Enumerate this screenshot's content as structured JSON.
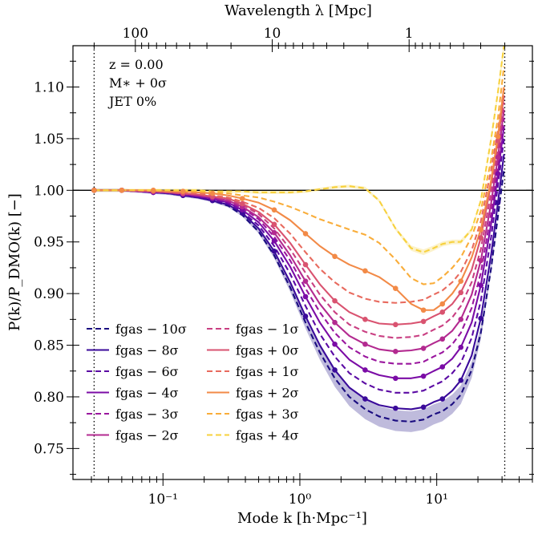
{
  "chart_data": {
    "type": "line",
    "xlabel": "Mode k [h·Mpc⁻¹]",
    "ylabel": "P(k)/P_DMO(k) [−]",
    "top_xlabel": "Wavelength λ [Mpc]",
    "xscale": "log",
    "xlim": [
      0.022,
      50
    ],
    "ylim": [
      0.72,
      1.14
    ],
    "x_ticks": [
      {
        "value": 0.1,
        "label": "10⁻¹"
      },
      {
        "value": 1,
        "label": "10⁰"
      },
      {
        "value": 10,
        "label": "10¹"
      }
    ],
    "y_ticks": [
      {
        "value": 0.75,
        "label": "0.75"
      },
      {
        "value": 0.8,
        "label": "0.80"
      },
      {
        "value": 0.85,
        "label": "0.85"
      },
      {
        "value": 0.9,
        "label": "0.90"
      },
      {
        "value": 0.95,
        "label": "0.95"
      },
      {
        "value": 1.0,
        "label": "1.00"
      },
      {
        "value": 1.05,
        "label": "1.05"
      },
      {
        "value": 1.1,
        "label": "1.10"
      }
    ],
    "top_ticks": [
      {
        "wavelength": 100,
        "label": "100"
      },
      {
        "wavelength": 10,
        "label": "10"
      },
      {
        "wavelength": 1,
        "label": "1"
      }
    ],
    "vlines": [
      0.0314,
      31.4
    ],
    "hline": 1.0,
    "annotations": [
      "z = 0.00",
      "M∗ + 0σ",
      "JET 0%"
    ],
    "legend_position": "lower-left",
    "k_values": [
      0.0314,
      0.04,
      0.05,
      0.065,
      0.085,
      0.11,
      0.14,
      0.18,
      0.23,
      0.3,
      0.38,
      0.5,
      0.65,
      0.85,
      1.1,
      1.4,
      1.8,
      2.3,
      3.0,
      3.8,
      5.0,
      6.5,
      8.0,
      9.5,
      11,
      13,
      15,
      18,
      21,
      25,
      28,
      31
    ],
    "marker_step": 2,
    "series": [
      {
        "name": "fgas − 10σ",
        "label": "fgas − 10σ",
        "color": "#1a0c80",
        "style": "dashed",
        "marker": false,
        "band": true,
        "band_color": "#1a0c80",
        "values": [
          1.0,
          1.0,
          1.0,
          0.999,
          0.998,
          0.997,
          0.995,
          0.993,
          0.99,
          0.985,
          0.976,
          0.96,
          0.937,
          0.906,
          0.872,
          0.843,
          0.818,
          0.8,
          0.788,
          0.781,
          0.777,
          0.776,
          0.778,
          0.783,
          0.786,
          0.793,
          0.802,
          0.826,
          0.862,
          0.925,
          0.975,
          1.02
        ]
      },
      {
        "name": "fgas − 8σ",
        "label": "fgas − 8σ",
        "color": "#3a0a9a",
        "style": "solid",
        "marker": true,
        "band": false,
        "values": [
          1.0,
          1.0,
          1.0,
          0.999,
          0.998,
          0.997,
          0.995,
          0.993,
          0.99,
          0.986,
          0.978,
          0.963,
          0.941,
          0.911,
          0.878,
          0.85,
          0.826,
          0.809,
          0.798,
          0.792,
          0.789,
          0.788,
          0.79,
          0.795,
          0.798,
          0.806,
          0.816,
          0.84,
          0.876,
          0.938,
          0.988,
          1.035
        ]
      },
      {
        "name": "fgas − 6σ",
        "label": "fgas − 6σ",
        "color": "#5b0aa4",
        "style": "dashed",
        "marker": false,
        "band": false,
        "values": [
          1.0,
          1.0,
          1.0,
          0.999,
          0.998,
          0.997,
          0.996,
          0.994,
          0.991,
          0.987,
          0.979,
          0.966,
          0.946,
          0.919,
          0.888,
          0.861,
          0.839,
          0.823,
          0.813,
          0.807,
          0.804,
          0.804,
          0.806,
          0.811,
          0.815,
          0.823,
          0.833,
          0.857,
          0.893,
          0.955,
          1.005,
          1.05
        ]
      },
      {
        "name": "fgas − 4σ",
        "label": "fgas − 4σ",
        "color": "#7b0ca6",
        "style": "solid",
        "marker": true,
        "band": false,
        "values": [
          1.0,
          1.0,
          1.0,
          0.999,
          0.998,
          0.998,
          0.996,
          0.994,
          0.992,
          0.988,
          0.981,
          0.969,
          0.951,
          0.926,
          0.897,
          0.872,
          0.851,
          0.836,
          0.826,
          0.821,
          0.818,
          0.818,
          0.82,
          0.825,
          0.829,
          0.837,
          0.848,
          0.872,
          0.908,
          0.968,
          1.016,
          1.062
        ]
      },
      {
        "name": "fgas − 3σ",
        "label": "fgas − 3σ",
        "color": "#9a169e",
        "style": "dashed",
        "marker": false,
        "band": false,
        "values": [
          1.0,
          1.0,
          1.0,
          0.999,
          0.999,
          0.998,
          0.996,
          0.995,
          0.993,
          0.989,
          0.983,
          0.972,
          0.955,
          0.932,
          0.905,
          0.882,
          0.862,
          0.848,
          0.839,
          0.834,
          0.832,
          0.832,
          0.834,
          0.839,
          0.843,
          0.851,
          0.862,
          0.886,
          0.92,
          0.978,
          1.024,
          1.07
        ]
      },
      {
        "name": "fgas − 2σ",
        "label": "fgas − 2σ",
        "color": "#b32a90",
        "style": "solid",
        "marker": true,
        "band": false,
        "values": [
          1.0,
          1.0,
          1.0,
          0.999,
          0.999,
          0.998,
          0.997,
          0.995,
          0.993,
          0.99,
          0.984,
          0.974,
          0.959,
          0.937,
          0.912,
          0.89,
          0.872,
          0.859,
          0.851,
          0.846,
          0.844,
          0.845,
          0.847,
          0.852,
          0.856,
          0.864,
          0.875,
          0.899,
          0.932,
          0.988,
          1.032,
          1.078
        ]
      },
      {
        "name": "fgas − 1σ",
        "label": "fgas − 1σ",
        "color": "#c93f82",
        "style": "dashed",
        "marker": false,
        "band": false,
        "values": [
          1.0,
          1.0,
          1.0,
          0.999,
          0.999,
          0.998,
          0.997,
          0.996,
          0.994,
          0.991,
          0.986,
          0.977,
          0.963,
          0.943,
          0.92,
          0.899,
          0.882,
          0.87,
          0.863,
          0.859,
          0.857,
          0.858,
          0.86,
          0.865,
          0.869,
          0.877,
          0.888,
          0.911,
          0.943,
          0.998,
          1.04,
          1.085
        ]
      },
      {
        "name": "fgas + 0σ",
        "label": "fgas + 0σ",
        "color": "#d95370",
        "style": "solid",
        "marker": true,
        "band": false,
        "values": [
          1.0,
          1.0,
          1.0,
          1.0,
          0.999,
          0.998,
          0.997,
          0.996,
          0.994,
          0.992,
          0.987,
          0.979,
          0.967,
          0.949,
          0.928,
          0.909,
          0.893,
          0.882,
          0.875,
          0.871,
          0.87,
          0.871,
          0.873,
          0.878,
          0.882,
          0.89,
          0.901,
          0.923,
          0.954,
          1.007,
          1.048,
          1.092
        ]
      },
      {
        "name": "fgas + 1σ",
        "label": "fgas + 1σ",
        "color": "#e86a5e",
        "style": "dashed",
        "marker": false,
        "band": false,
        "values": [
          1.0,
          1.0,
          1.0,
          1.0,
          0.999,
          0.999,
          0.998,
          0.997,
          0.995,
          0.993,
          0.989,
          0.983,
          0.973,
          0.958,
          0.94,
          0.924,
          0.911,
          0.901,
          0.895,
          0.892,
          0.891,
          0.892,
          0.894,
          0.899,
          0.903,
          0.911,
          0.921,
          0.942,
          0.97,
          1.02,
          1.058,
          1.1
        ]
      },
      {
        "name": "fgas + 2σ",
        "label": "fgas + 2σ",
        "color": "#f28a47",
        "style": "solid",
        "marker": true,
        "band": false,
        "values": [
          1.0,
          1.0,
          1.0,
          1.0,
          1.0,
          0.999,
          0.999,
          0.998,
          0.997,
          0.995,
          0.992,
          0.988,
          0.981,
          0.971,
          0.958,
          0.946,
          0.936,
          0.928,
          0.922,
          0.916,
          0.905,
          0.89,
          0.884,
          0.884,
          0.89,
          0.9,
          0.912,
          0.935,
          0.962,
          1.01,
          1.052,
          1.1
        ]
      },
      {
        "name": "fgas + 3σ",
        "label": "fgas + 3σ",
        "color": "#f9ad3a",
        "style": "dashed",
        "marker": false,
        "band": false,
        "values": [
          1.0,
          1.0,
          1.0,
          1.0,
          1.0,
          1.0,
          0.999,
          0.999,
          0.998,
          0.997,
          0.995,
          0.993,
          0.989,
          0.984,
          0.978,
          0.972,
          0.967,
          0.962,
          0.957,
          0.949,
          0.933,
          0.915,
          0.909,
          0.91,
          0.916,
          0.925,
          0.935,
          0.955,
          0.98,
          1.03,
          1.07,
          1.12
        ]
      },
      {
        "name": "fgas + 4σ",
        "label": "fgas + 4σ",
        "color": "#f7d13d",
        "style": "dashed",
        "marker": false,
        "band": true,
        "band_color": "#f3cf40",
        "values": [
          1.0,
          1.0,
          1.0,
          1.0,
          1.0,
          1.0,
          1.0,
          1.0,
          0.999,
          0.999,
          0.999,
          0.998,
          0.998,
          0.998,
          0.999,
          1.001,
          1.003,
          1.004,
          1.002,
          0.99,
          0.963,
          0.944,
          0.94,
          0.944,
          0.948,
          0.95,
          0.95,
          0.962,
          0.99,
          1.05,
          1.095,
          1.14
        ]
      }
    ]
  }
}
